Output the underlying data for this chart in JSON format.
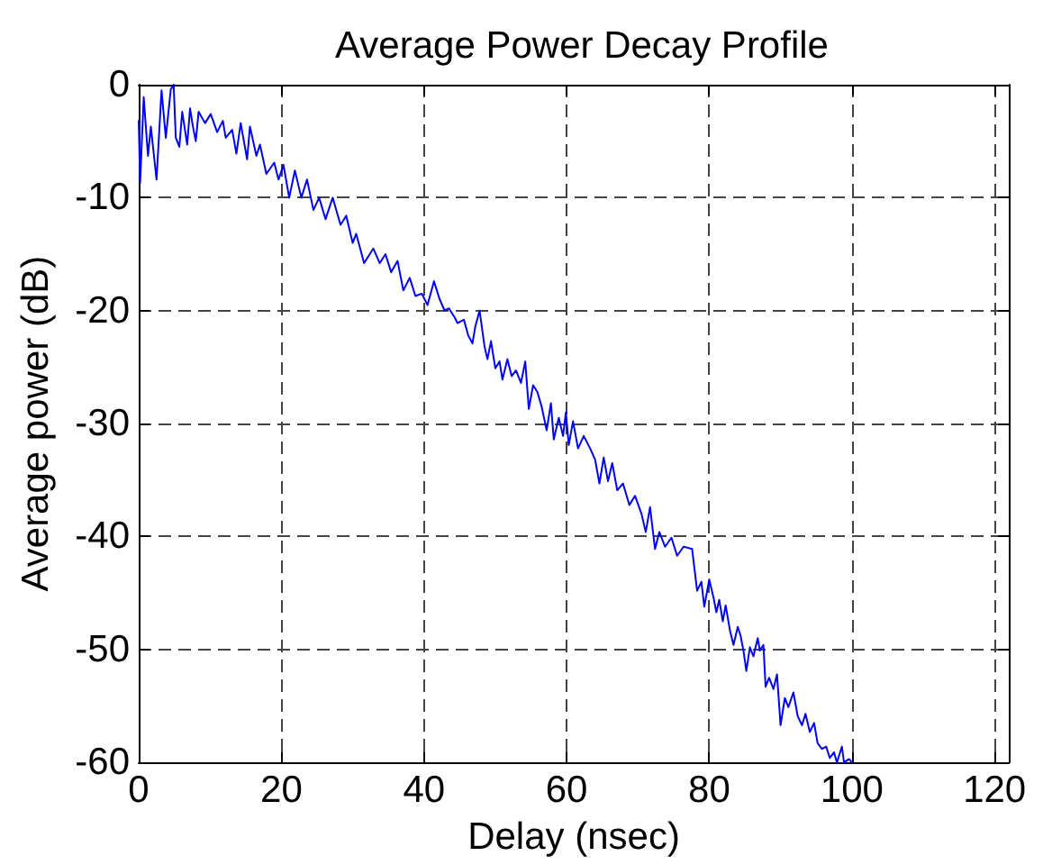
{
  "chart_data": {
    "type": "line",
    "title": "Average Power Decay Profile",
    "xlabel": "Delay (nsec)",
    "ylabel": "Average power (dB)",
    "x": [
      0,
      0.2,
      0.7,
      1.3,
      1.7,
      2.5,
      3.2,
      3.8,
      4.5,
      4.9,
      5.2,
      5.7,
      6.1,
      6.8,
      7.2,
      7.6,
      8.0,
      8.4,
      9.3,
      10.1,
      11.0,
      11.8,
      12.2,
      13.1,
      13.7,
      14.3,
      15.2,
      15.6,
      16.5,
      17.0,
      17.9,
      19.0,
      19.6,
      20.3,
      21.1,
      21.9,
      22.8,
      23.6,
      24.5,
      25.3,
      26.2,
      27.2,
      28.3,
      29.1,
      30.0,
      30.5,
      31.6,
      32.9,
      33.8,
      34.6,
      35.4,
      36.3,
      37.1,
      38.0,
      38.8,
      39.7,
      40.5,
      41.4,
      42.2,
      42.9,
      43.5,
      44.3,
      44.7,
      45.6,
      46.2,
      46.8,
      47.2,
      47.8,
      48.5,
      48.9,
      49.4,
      50.0,
      50.6,
      51.0,
      51.7,
      52.3,
      52.9,
      53.6,
      54.2,
      54.7,
      55.3,
      55.9,
      56.5,
      57.2,
      57.8,
      58.2,
      58.9,
      59.5,
      59.9,
      60.3,
      60.9,
      61.6,
      62.4,
      63.3,
      64.0,
      64.6,
      65.2,
      65.8,
      66.4,
      67.1,
      67.9,
      68.8,
      69.6,
      70.5,
      71.1,
      71.7,
      72.4,
      73.0,
      73.8,
      74.7,
      75.5,
      76.4,
      77.6,
      78.3,
      78.9,
      79.3,
      80.0,
      80.6,
      81.0,
      81.4,
      81.9,
      82.3,
      82.9,
      83.4,
      84.0,
      84.4,
      84.8,
      85.2,
      85.7,
      86.2,
      86.8,
      87.1,
      87.6,
      87.9,
      88.4,
      89.0,
      89.5,
      90.0,
      90.6,
      91.1,
      91.8,
      92.4,
      93.0,
      93.5,
      94.1,
      94.7,
      95.2,
      95.8,
      96.4,
      96.9,
      97.5,
      97.9,
      98.6,
      98.9,
      99.6,
      100.0
    ],
    "series": [
      {
        "color": "#0000ff",
        "values": [
          -3.2,
          -8.7,
          -1.1,
          -6.3,
          -3.7,
          -8.4,
          -0.5,
          -4.7,
          -0.4,
          0,
          -4.7,
          -5.5,
          -2.4,
          -5.3,
          -2.1,
          -3.7,
          -5.0,
          -2.4,
          -3.4,
          -2.6,
          -4.2,
          -3.2,
          -4.7,
          -4.0,
          -6.1,
          -3.4,
          -6.6,
          -3.7,
          -6.3,
          -5.3,
          -7.9,
          -6.9,
          -8.4,
          -7.1,
          -10.0,
          -7.6,
          -10.0,
          -8.4,
          -11.1,
          -10.0,
          -11.9,
          -10.0,
          -12.4,
          -11.6,
          -14.0,
          -13.2,
          -15.8,
          -14.5,
          -15.8,
          -15.0,
          -16.6,
          -15.6,
          -18.2,
          -17.1,
          -18.7,
          -18.5,
          -19.5,
          -17.4,
          -19.0,
          -20.0,
          -19.8,
          -20.6,
          -21.1,
          -20.8,
          -22.2,
          -22.9,
          -21.4,
          -20.0,
          -23.2,
          -24.3,
          -22.7,
          -25.1,
          -24.5,
          -26.1,
          -24.3,
          -25.8,
          -25.3,
          -26.4,
          -24.5,
          -28.7,
          -26.6,
          -27.2,
          -28.5,
          -30.6,
          -28.2,
          -31.4,
          -29.5,
          -31.1,
          -29.0,
          -31.9,
          -29.8,
          -32.2,
          -31.1,
          -32.2,
          -33.2,
          -35.3,
          -33.0,
          -35.1,
          -33.5,
          -35.9,
          -35.3,
          -37.2,
          -36.4,
          -38.0,
          -39.6,
          -37.4,
          -41.1,
          -39.6,
          -40.9,
          -40.1,
          -41.7,
          -40.9,
          -41.1,
          -44.8,
          -44.0,
          -46.2,
          -43.8,
          -45.4,
          -46.7,
          -45.6,
          -47.5,
          -46.1,
          -48.3,
          -49.6,
          -48.0,
          -48.8,
          -50.1,
          -51.9,
          -49.8,
          -50.6,
          -49.0,
          -50.1,
          -49.6,
          -53.3,
          -52.5,
          -53.5,
          -52.2,
          -56.7,
          -54.3,
          -55.1,
          -53.8,
          -55.9,
          -56.7,
          -55.7,
          -57.3,
          -56.5,
          -58.3,
          -58.8,
          -58.6,
          -59.6,
          -59.1,
          -60.0,
          -58.6,
          -60.0,
          -59.7,
          -60.0
        ]
      }
    ],
    "xlim": [
      0,
      122
    ],
    "xticks": [
      0,
      20,
      40,
      60,
      80,
      100,
      120
    ],
    "ylim": [
      -60,
      0
    ],
    "yticks": [
      -60,
      -50,
      -40,
      -30,
      -20,
      -10,
      0
    ],
    "grid": true,
    "line_style": "solid"
  }
}
